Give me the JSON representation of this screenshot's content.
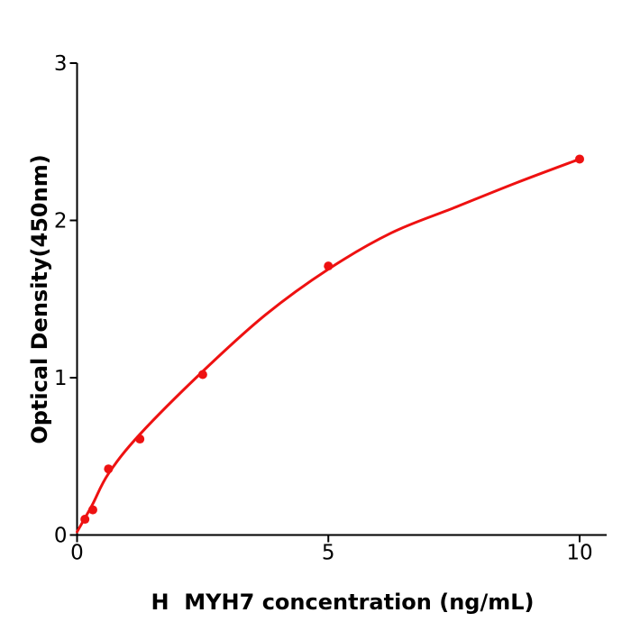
{
  "figure": {
    "background": "#ffffff",
    "description_name": "elisa-standard-curve"
  },
  "chart_data": {
    "type": "scatter",
    "title": "",
    "xlabel": "H  MYH7 concentration (ng/mL)",
    "ylabel": "Optical Density(450nm)",
    "xlim": [
      0,
      10.54
    ],
    "ylim": [
      0,
      3
    ],
    "grid": false,
    "legend": "none",
    "xtick_values": [
      0,
      5,
      10
    ],
    "xtick_labels": [
      "0",
      "5",
      "10"
    ],
    "ytick_values": [
      0,
      1,
      2,
      3
    ],
    "ytick_labels": [
      "0",
      "1",
      "2",
      "3"
    ],
    "series": [
      {
        "name": "standard-points",
        "x": [
          0.156,
          0.313,
          0.625,
          1.25,
          2.5,
          5,
          10
        ],
        "y": [
          0.1,
          0.16,
          0.42,
          0.61,
          1.02,
          1.71,
          2.39
        ]
      }
    ],
    "fit_curve_points": [
      [
        0,
        0.02
      ],
      [
        0.3,
        0.19
      ],
      [
        0.625,
        0.39
      ],
      [
        1.25,
        0.64
      ],
      [
        2.5,
        1.04
      ],
      [
        3.75,
        1.4
      ],
      [
        5,
        1.69
      ],
      [
        6.25,
        1.92
      ],
      [
        7.5,
        2.08
      ],
      [
        8.75,
        2.24
      ],
      [
        10,
        2.39
      ]
    ],
    "colors": {
      "curve": "#ee1111",
      "marker": "#ee1111",
      "axis": "#000000",
      "text": "#000000"
    }
  }
}
